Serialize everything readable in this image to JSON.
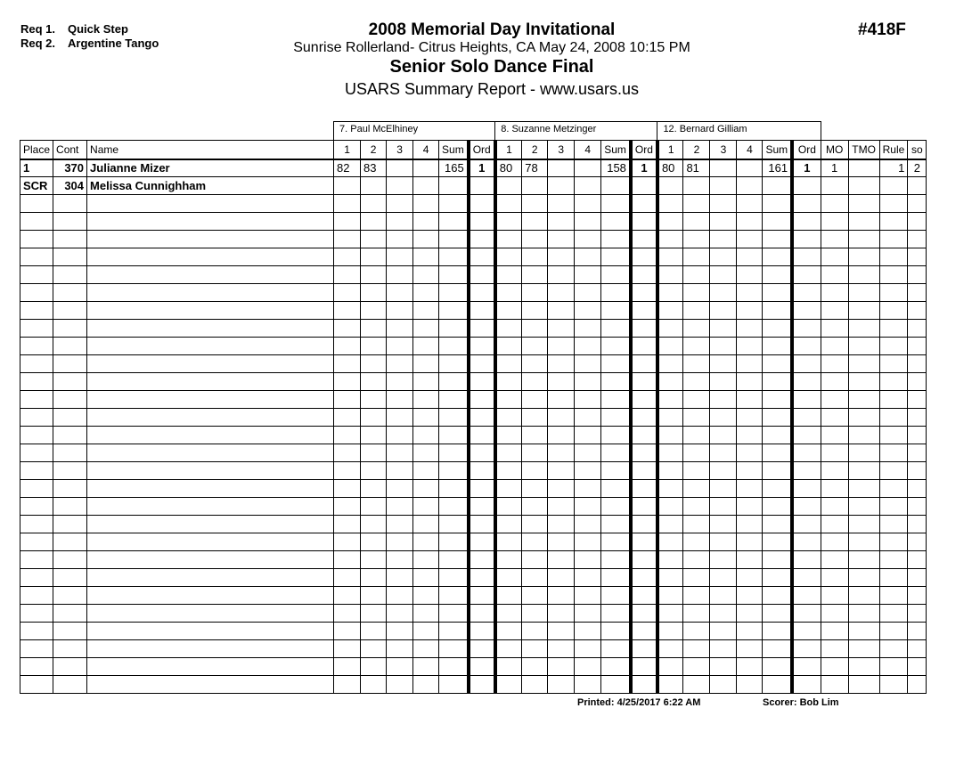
{
  "requirements": [
    {
      "label": "Req  1.",
      "dance": "Quick Step"
    },
    {
      "label": "Req  2.",
      "dance": "Argentine Tango"
    }
  ],
  "header": {
    "title": "2008 Memorial Day Invitational",
    "location": "Sunrise Rollerland- Citrus Heights, CA  May 24, 2008  10:15 PM",
    "event": "Senior Solo Dance Final",
    "report": "USARS Summary Report - www.usars.us",
    "event_number": "#418F"
  },
  "judges": [
    "7.  Paul McElhiney",
    "8.  Suzanne Metzinger",
    "12.  Bernard Gilliam"
  ],
  "columns": {
    "place": "Place",
    "cont": "Cont",
    "name": "Name",
    "scores": [
      "1",
      "2",
      "3",
      "4"
    ],
    "sum": "Sum",
    "ord": "Ord",
    "mo": "MO",
    "tmo": "TMO",
    "rule": "Rule",
    "so": "so"
  },
  "rows": [
    {
      "place": "1",
      "cont": "370",
      "name": "Julianne Mizer",
      "judges": [
        {
          "scores": [
            "82",
            "83",
            "",
            ""
          ],
          "sum": "165",
          "ord": "1"
        },
        {
          "scores": [
            "80",
            "78",
            "",
            ""
          ],
          "sum": "158",
          "ord": "1"
        },
        {
          "scores": [
            "80",
            "81",
            "",
            ""
          ],
          "sum": "161",
          "ord": "1"
        }
      ],
      "mo": "1",
      "tmo": "",
      "rule": "1",
      "so": "2"
    },
    {
      "place": "SCR",
      "cont": "304",
      "name": "Melissa Cunnighham",
      "judges": [
        {
          "scores": [
            "",
            "",
            "",
            ""
          ],
          "sum": "",
          "ord": ""
        },
        {
          "scores": [
            "",
            "",
            "",
            ""
          ],
          "sum": "",
          "ord": ""
        },
        {
          "scores": [
            "",
            "",
            "",
            ""
          ],
          "sum": "",
          "ord": ""
        }
      ],
      "mo": "",
      "tmo": "",
      "rule": "",
      "so": ""
    }
  ],
  "footer": {
    "printed": "Printed:  4/25/2017  6:22 AM",
    "scorer": "Scorer:  Bob Lim"
  }
}
